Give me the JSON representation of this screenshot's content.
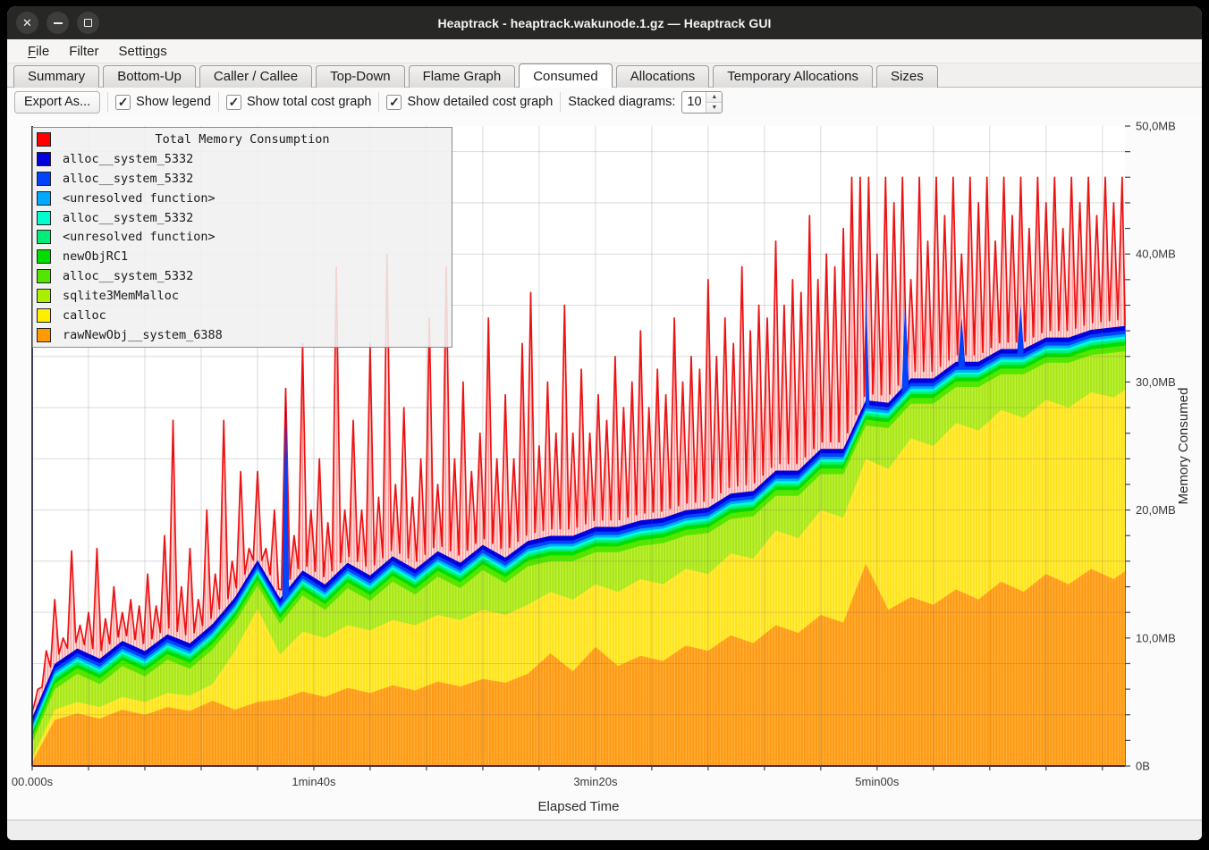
{
  "window": {
    "title": "Heaptrack - heaptrack.wakunode.1.gz — Heaptrack GUI",
    "controls": [
      "close",
      "minimize",
      "maximize"
    ]
  },
  "menubar": {
    "items": [
      {
        "label": "File",
        "mnemonic": 0
      },
      {
        "label": "Filter",
        "mnemonic": -1
      },
      {
        "label": "Settings",
        "mnemonic": 5
      }
    ]
  },
  "tabs": {
    "items": [
      "Summary",
      "Bottom-Up",
      "Caller / Callee",
      "Top-Down",
      "Flame Graph",
      "Consumed",
      "Allocations",
      "Temporary Allocations",
      "Sizes"
    ],
    "active_index": 5
  },
  "toolbar": {
    "export_label": "Export As...",
    "checkboxes": [
      {
        "label": "Show legend",
        "checked": true
      },
      {
        "label": "Show total cost graph",
        "checked": true
      },
      {
        "label": "Show detailed cost graph",
        "checked": true
      }
    ],
    "stacked_label": "Stacked diagrams:",
    "stacked_value": "10"
  },
  "chart_data": {
    "type": "area",
    "title": "Total Memory Consumption",
    "xlabel": "Elapsed Time",
    "ylabel": "Memory Consumed",
    "xlim": [
      0,
      388
    ],
    "ylim": [
      0,
      50
    ],
    "x_ticks": [
      {
        "t": 0,
        "label": "00.000s"
      },
      {
        "t": 100,
        "label": "1min40s"
      },
      {
        "t": 200,
        "label": "3min20s"
      },
      {
        "t": 300,
        "label": "5min00s"
      }
    ],
    "y_ticks": [
      {
        "v": 50,
        "label": "50,0MB"
      },
      {
        "v": 40,
        "label": "40,0MB"
      },
      {
        "v": 30,
        "label": "30,0MB"
      },
      {
        "v": 20,
        "label": "20,0MB"
      },
      {
        "v": 10,
        "label": "10,0MB"
      },
      {
        "v": 0,
        "label": "0B"
      }
    ],
    "x_minor_step": 20,
    "y_minor_step": 2,
    "x_grid_step": 20,
    "y_grid_step": 4,
    "grid": true,
    "legend_position": "top-left",
    "legend": [
      {
        "color": "#ff0000",
        "label": "Total Memory Consumption"
      },
      {
        "color": "#0000dd",
        "label": "alloc__system_5332"
      },
      {
        "color": "#0044ff",
        "label": "alloc__system_5332"
      },
      {
        "color": "#00aaff",
        "label": "<unresolved function>"
      },
      {
        "color": "#00ffcc",
        "label": "alloc__system_5332"
      },
      {
        "color": "#00ee77",
        "label": "<unresolved function>"
      },
      {
        "color": "#00dd00",
        "label": "newObjRC1"
      },
      {
        "color": "#55e600",
        "label": "alloc__system_5332"
      },
      {
        "color": "#aaee00",
        "label": "sqlite3MemMalloc"
      },
      {
        "color": "#ffee00",
        "label": "calloc"
      },
      {
        "color": "#ff9900",
        "label": "rawNewObj__system_6388"
      }
    ],
    "stack": {
      "t": [
        0,
        8,
        16,
        24,
        32,
        40,
        48,
        56,
        64,
        72,
        80,
        88,
        96,
        104,
        112,
        120,
        128,
        136,
        144,
        152,
        160,
        168,
        176,
        184,
        192,
        200,
        208,
        216,
        224,
        232,
        240,
        248,
        256,
        264,
        272,
        280,
        288,
        296,
        304,
        312,
        320,
        328,
        336,
        344,
        352,
        360,
        368,
        376,
        384,
        388
      ],
      "orange_top": [
        0.3,
        3.6,
        4.1,
        3.7,
        4.4,
        4.0,
        4.6,
        4.3,
        5.1,
        4.4,
        5.0,
        5.2,
        5.8,
        5.4,
        6.1,
        5.7,
        6.3,
        5.9,
        6.6,
        6.2,
        6.8,
        6.5,
        7.2,
        8.8,
        7.4,
        9.3,
        7.8,
        8.6,
        8.2,
        9.4,
        9.0,
        10.2,
        9.6,
        11.0,
        10.4,
        11.8,
        11.2,
        15.8,
        12.2,
        13.2,
        12.6,
        13.8,
        13.0,
        14.4,
        13.6,
        15.0,
        14.2,
        15.4,
        14.6,
        15.2
      ],
      "yellow_top": [
        0.6,
        4.4,
        5.0,
        4.6,
        5.4,
        5.0,
        5.7,
        5.5,
        6.4,
        9.0,
        12.3,
        8.7,
        10.5,
        10.0,
        11.0,
        10.6,
        11.4,
        11.0,
        11.8,
        11.4,
        12.2,
        11.8,
        12.6,
        13.6,
        13.0,
        14.2,
        13.6,
        14.6,
        14.2,
        15.4,
        15.0,
        16.6,
        16.2,
        18.4,
        17.8,
        20.0,
        19.4,
        24.0,
        23.2,
        25.6,
        25.0,
        26.8,
        26.2,
        27.8,
        27.2,
        28.6,
        28.0,
        29.2,
        28.8,
        29.4
      ],
      "sqlite_top": [
        1.8,
        6.0,
        7.2,
        6.4,
        7.8,
        7.0,
        8.3,
        7.6,
        9.1,
        11.2,
        14.1,
        11.1,
        13.3,
        12.2,
        13.9,
        12.9,
        14.4,
        13.4,
        14.8,
        13.9,
        15.3,
        14.3,
        15.6,
        16.0,
        16.0,
        16.7,
        16.7,
        17.2,
        17.4,
        18.0,
        18.2,
        19.3,
        19.5,
        21.1,
        21.1,
        22.8,
        22.8,
        26.6,
        26.4,
        28.3,
        28.3,
        29.6,
        29.6,
        30.6,
        30.6,
        31.5,
        31.5,
        32.1,
        32.3,
        32.4
      ],
      "base_layers": [
        {
          "name": "rawNewObj__system_6388",
          "color": "#ff9913",
          "stripe": "#ffb240",
          "key": "orange_top"
        },
        {
          "name": "calloc",
          "color": "#ffe313",
          "stripe": "#ffee5e",
          "key": "yellow_top"
        },
        {
          "name": "sqlite3MemMalloc",
          "color": "#a8e613",
          "stripe": "#c2f24a",
          "key": "sqlite_top"
        }
      ],
      "upper_layers": [
        {
          "name": "alloc__system_5332",
          "color": "#55e600",
          "off": 0.45
        },
        {
          "name": "newObjRC1",
          "color": "#00dd00",
          "off": 0.75
        },
        {
          "name": "<unresolved function>",
          "color": "#00ee77",
          "off": 0.95
        },
        {
          "name": "alloc__system_5332",
          "color": "#00ffcc",
          "off": 1.15
        },
        {
          "name": "<unresolved function>",
          "color": "#00aaff",
          "off": 1.35
        },
        {
          "name": "alloc__system_5332",
          "color": "#0044ff",
          "off": 1.62,
          "spiky": true
        },
        {
          "name": "alloc__system_5332",
          "color": "#0000dd",
          "off": 1.98,
          "spiky": true
        }
      ],
      "blue_spikes": [
        [
          90,
          29
        ],
        [
          296,
          38
        ],
        [
          310,
          36.5
        ],
        [
          330,
          35
        ],
        [
          351,
          36
        ]
      ]
    },
    "red": {
      "color": "#ee1111",
      "fill": "rgba(255,0,0,0.13)",
      "hatch": "rgba(255,0,0,0.42)",
      "base_offset": 0.55,
      "spikes": [
        [
          2,
          6
        ],
        [
          5,
          9
        ],
        [
          8,
          13
        ],
        [
          11,
          10
        ],
        [
          14,
          16.8
        ],
        [
          17,
          11
        ],
        [
          20,
          12
        ],
        [
          23,
          17
        ],
        [
          26,
          11.5
        ],
        [
          29,
          14
        ],
        [
          32,
          12
        ],
        [
          35,
          13
        ],
        [
          38,
          12.5
        ],
        [
          41,
          15
        ],
        [
          44,
          12.5
        ],
        [
          47,
          18
        ],
        [
          50,
          27
        ],
        [
          53,
          14
        ],
        [
          56,
          17
        ],
        [
          59,
          13
        ],
        [
          62,
          20
        ],
        [
          65,
          15
        ],
        [
          68,
          27
        ],
        [
          71,
          16
        ],
        [
          74,
          23
        ],
        [
          77,
          17
        ],
        [
          80,
          23
        ],
        [
          83,
          17
        ],
        [
          86,
          20
        ],
        [
          90,
          29.5
        ],
        [
          93,
          18
        ],
        [
          96,
          33
        ],
        [
          99,
          20
        ],
        [
          102,
          24
        ],
        [
          105,
          19
        ],
        [
          108,
          39
        ],
        [
          111,
          20
        ],
        [
          114,
          27
        ],
        [
          117,
          20
        ],
        [
          120,
          33
        ],
        [
          123,
          21
        ],
        [
          126,
          40
        ],
        [
          129,
          22
        ],
        [
          132,
          28
        ],
        [
          135,
          21
        ],
        [
          138,
          24
        ],
        [
          141,
          35
        ],
        [
          144,
          22
        ],
        [
          147,
          39
        ],
        [
          150,
          24
        ],
        [
          153,
          30
        ],
        [
          156,
          23
        ],
        [
          159,
          26
        ],
        [
          162,
          35
        ],
        [
          165,
          24
        ],
        [
          168,
          29
        ],
        [
          171,
          24
        ],
        [
          174,
          33
        ],
        [
          177,
          37
        ],
        [
          180,
          25
        ],
        [
          183,
          30
        ],
        [
          186,
          26
        ],
        [
          189,
          36
        ],
        [
          192,
          26
        ],
        [
          195,
          31
        ],
        [
          198,
          26
        ],
        [
          201,
          29
        ],
        [
          204,
          27
        ],
        [
          207,
          32
        ],
        [
          210,
          28
        ],
        [
          213,
          30
        ],
        [
          216,
          34
        ],
        [
          219,
          28
        ],
        [
          222,
          31
        ],
        [
          225,
          29
        ],
        [
          228,
          35
        ],
        [
          231,
          30
        ],
        [
          234,
          32
        ],
        [
          237,
          31
        ],
        [
          240,
          38
        ],
        [
          243,
          32
        ],
        [
          246,
          35
        ],
        [
          249,
          33
        ],
        [
          252,
          39
        ],
        [
          255,
          34
        ],
        [
          258,
          36
        ],
        [
          261,
          35
        ],
        [
          264,
          41
        ],
        [
          267,
          36
        ],
        [
          270,
          38
        ],
        [
          273,
          37
        ],
        [
          276,
          43
        ],
        [
          279,
          38
        ],
        [
          282,
          40
        ],
        [
          285,
          39
        ],
        [
          288,
          42
        ],
        [
          291,
          46
        ],
        [
          294,
          46
        ],
        [
          297,
          46
        ],
        [
          300,
          40
        ],
        [
          303,
          46
        ],
        [
          306,
          44
        ],
        [
          309,
          46
        ],
        [
          312,
          38
        ],
        [
          315,
          46
        ],
        [
          318,
          41
        ],
        [
          321,
          46
        ],
        [
          324,
          43
        ],
        [
          327,
          46
        ],
        [
          330,
          40
        ],
        [
          333,
          46
        ],
        [
          336,
          44
        ],
        [
          339,
          46
        ],
        [
          342,
          41
        ],
        [
          345,
          46
        ],
        [
          348,
          43
        ],
        [
          351,
          46
        ],
        [
          354,
          42
        ],
        [
          357,
          46
        ],
        [
          360,
          44
        ],
        [
          363,
          46
        ],
        [
          366,
          42
        ],
        [
          369,
          46
        ],
        [
          372,
          44
        ],
        [
          375,
          46
        ],
        [
          378,
          43
        ],
        [
          381,
          46
        ],
        [
          384,
          44
        ],
        [
          387,
          46
        ]
      ]
    },
    "colors": {
      "axis": "#26263e",
      "grid": "rgba(90,90,90,0.22)",
      "tick_label": "#3a3a3a",
      "axis_label": "#2b2b2b",
      "plot_bg": "#ffffff"
    }
  }
}
